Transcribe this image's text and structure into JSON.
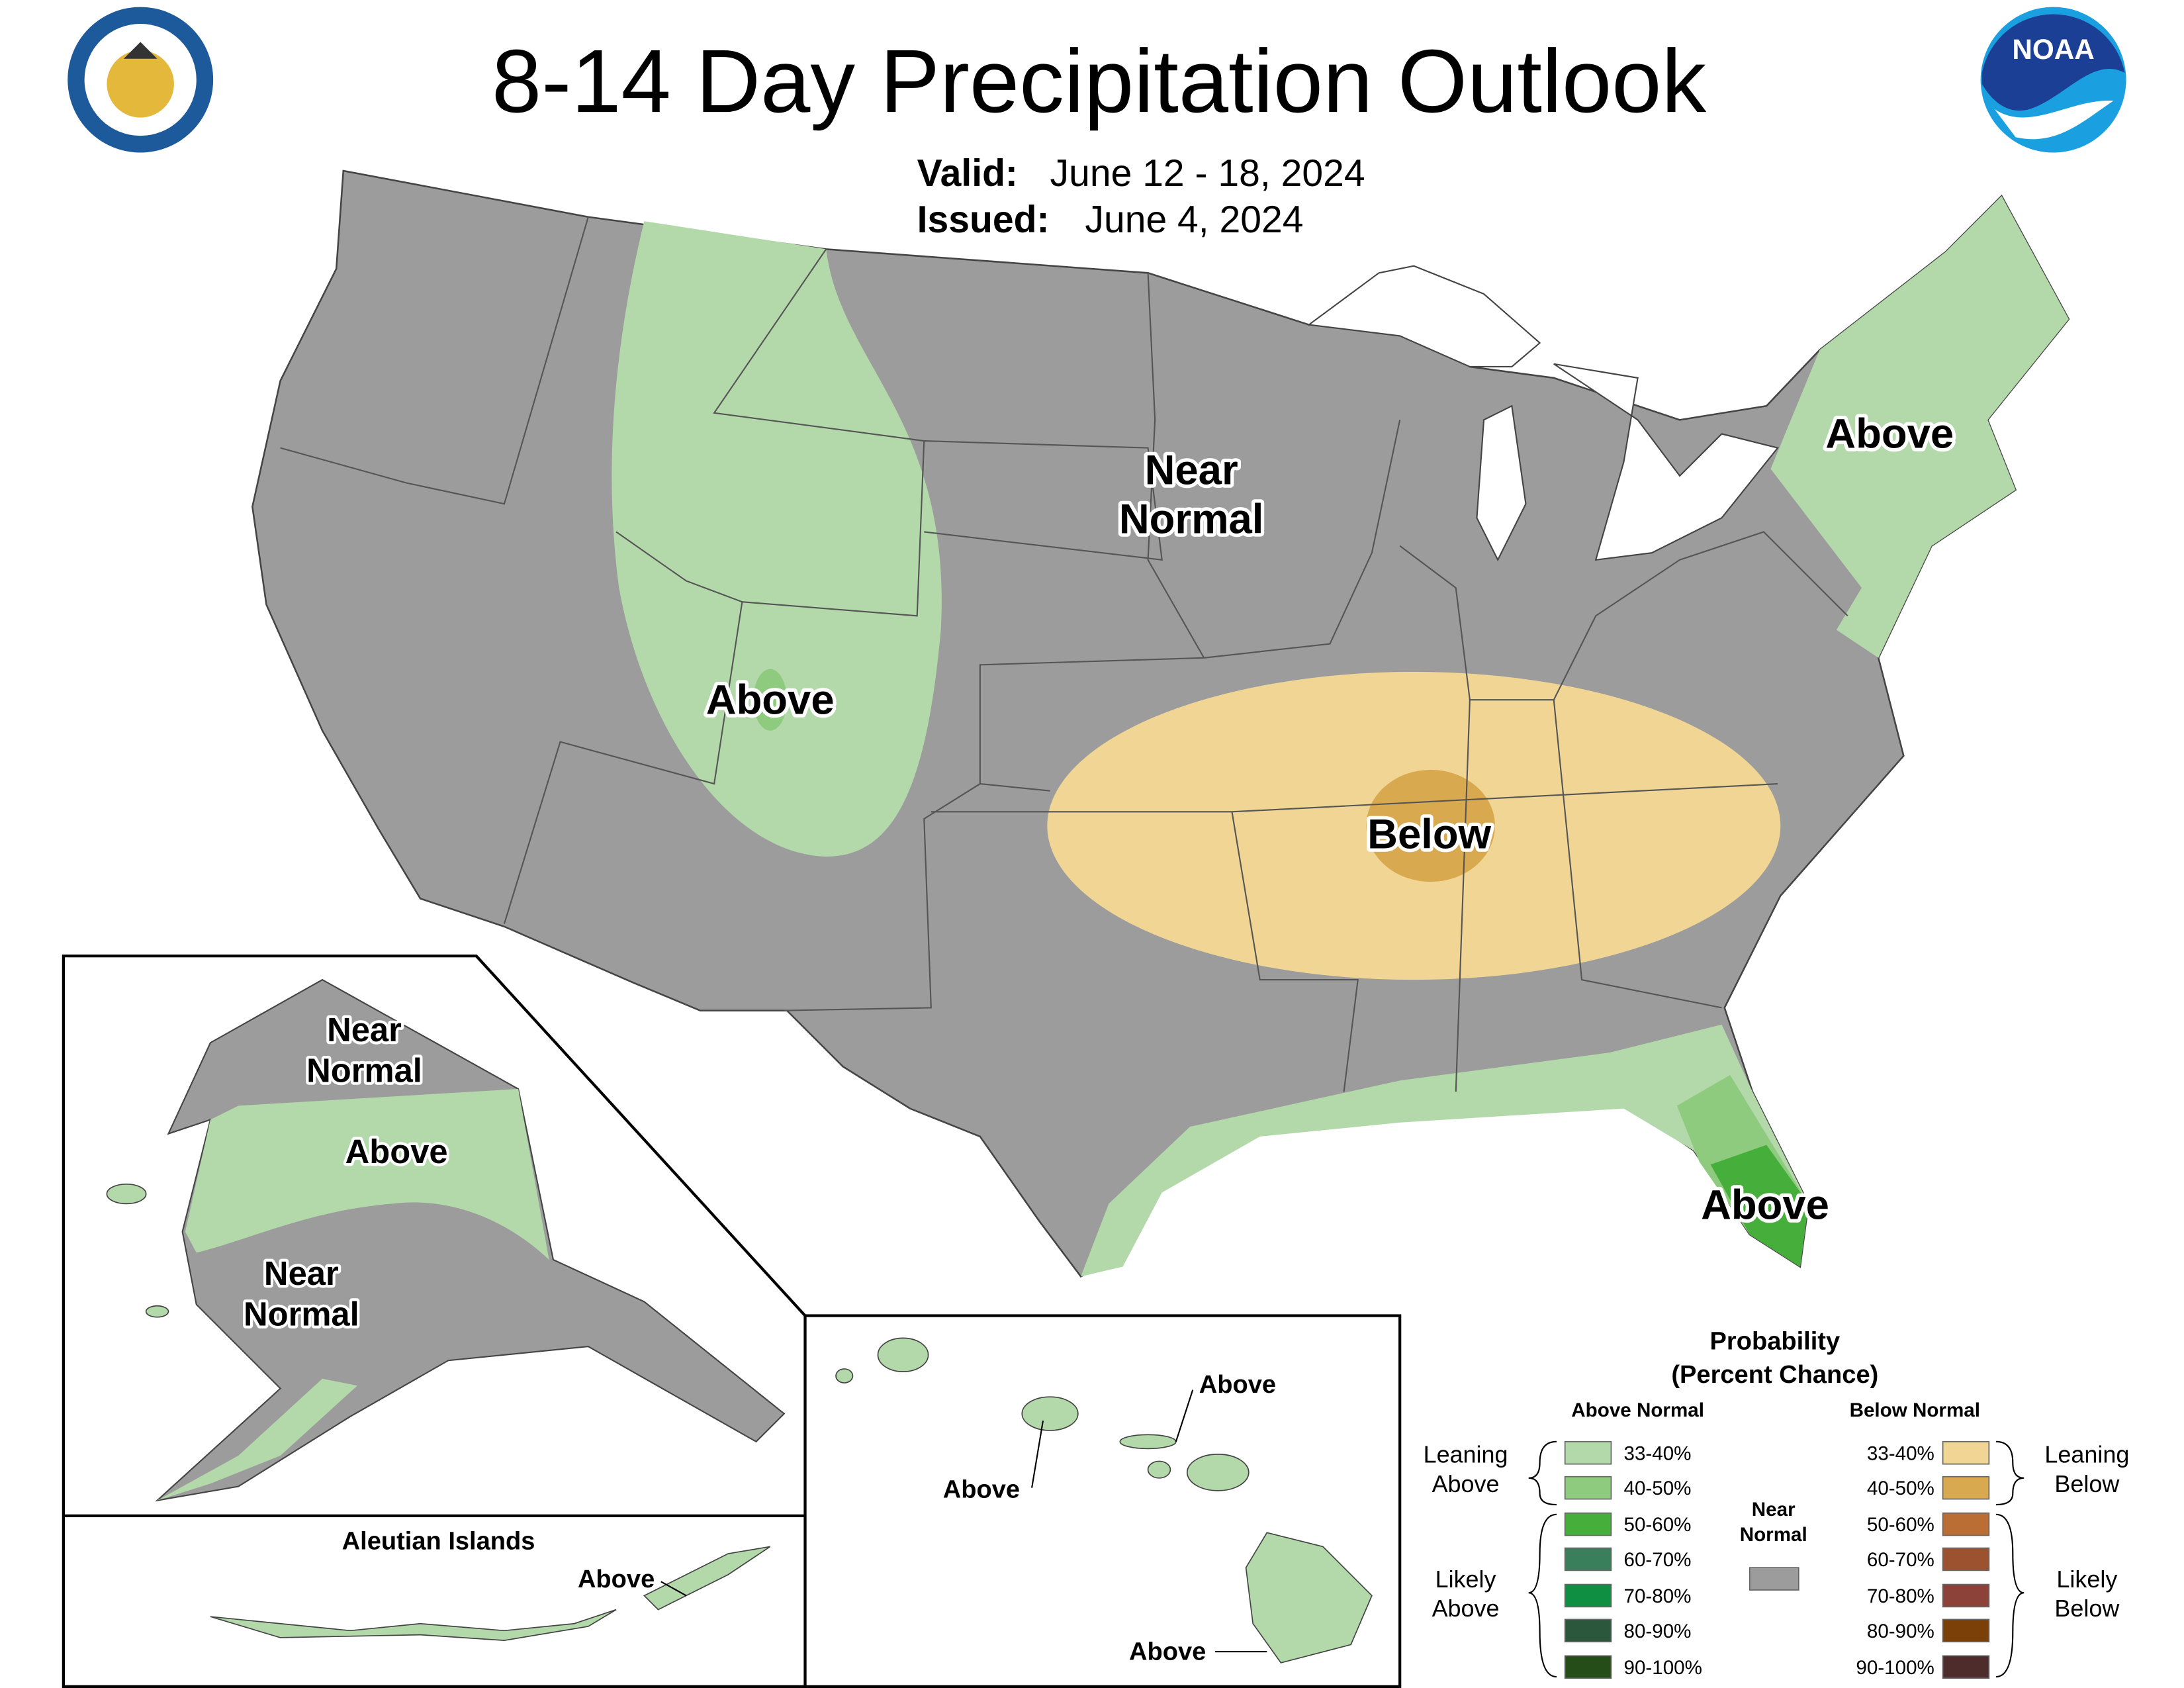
{
  "title": "8-14 Day Precipitation Outlook",
  "valid": {
    "label": "Valid:",
    "value": "June 12 - 18, 2024"
  },
  "issued": {
    "label": "Issued:",
    "value": "June 4, 2024"
  },
  "noaa_logo": "NOAA",
  "conus_labels": [
    {
      "lines": [
        "Near",
        "Normal"
      ]
    },
    {
      "lines": [
        "Above"
      ]
    },
    {
      "lines": [
        "Above"
      ]
    },
    {
      "lines": [
        "Below"
      ]
    },
    {
      "lines": [
        "Above"
      ]
    }
  ],
  "alaska_labels": [
    {
      "lines": [
        "Near",
        "Normal"
      ]
    },
    {
      "lines": [
        "Above"
      ]
    },
    {
      "lines": [
        "Near",
        "Normal"
      ]
    }
  ],
  "aleutian": {
    "title": "Aleutian Islands",
    "label": "Above"
  },
  "hawaii_labels": [
    "Above",
    "Above",
    "Above"
  ],
  "legend": {
    "title": "Probability",
    "subtitle": "(Percent Chance)",
    "above_heading": "Above Normal",
    "below_heading": "Below Normal",
    "near_normal": [
      "Near",
      "Normal"
    ],
    "near_normal_color": "#9c9c9c",
    "leaning_above": [
      "Leaning",
      "Above"
    ],
    "likely_above": [
      "Likely",
      "Above"
    ],
    "leaning_below": [
      "Leaning",
      "Below"
    ],
    "likely_below": [
      "Likely",
      "Below"
    ],
    "above": [
      {
        "label": "33-40%",
        "color": "#b3d9ab"
      },
      {
        "label": "40-50%",
        "color": "#8fcb7e"
      },
      {
        "label": "50-60%",
        "color": "#46ae3a"
      },
      {
        "label": "60-70%",
        "color": "#3a7f5c"
      },
      {
        "label": "70-80%",
        "color": "#0e8f42"
      },
      {
        "label": "80-90%",
        "color": "#2b573c"
      },
      {
        "label": "90-100%",
        "color": "#244d17"
      }
    ],
    "below": [
      {
        "label": "33-40%",
        "color": "#f0d594"
      },
      {
        "label": "40-50%",
        "color": "#d8a94f"
      },
      {
        "label": "50-60%",
        "color": "#bb6e33"
      },
      {
        "label": "60-70%",
        "color": "#9c522f"
      },
      {
        "label": "70-80%",
        "color": "#8c4238"
      },
      {
        "label": "80-90%",
        "color": "#7b4008"
      },
      {
        "label": "90-100%",
        "color": "#4e2c2c"
      }
    ]
  }
}
